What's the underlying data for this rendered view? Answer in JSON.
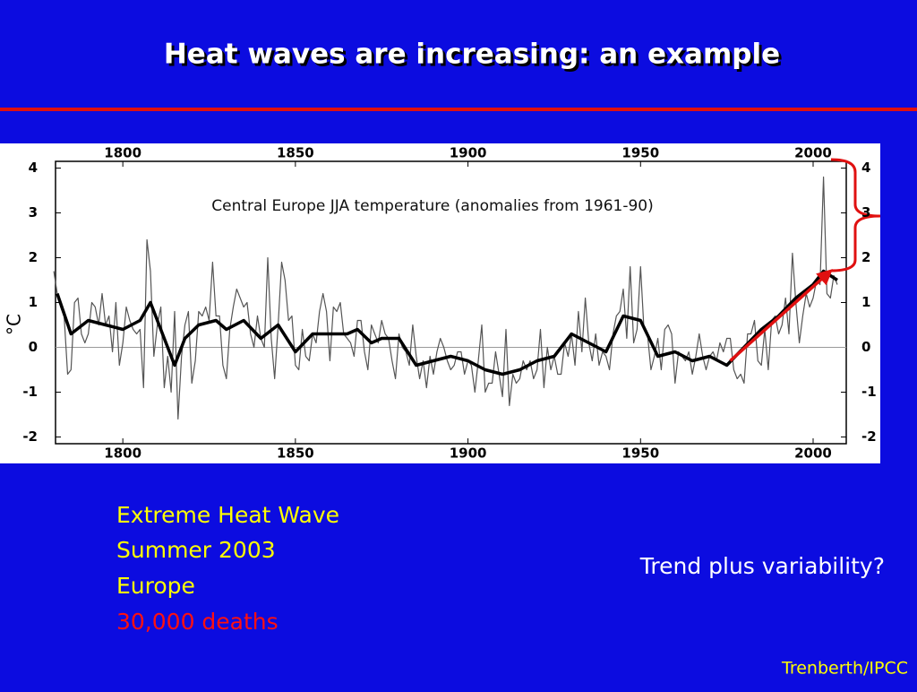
{
  "slide": {
    "title": "Heat waves are increasing: an example",
    "facts": [
      "Extreme Heat Wave",
      "Summer 2003",
      "Europe",
      "30,000 deaths"
    ],
    "question": "Trend plus variability?",
    "credit": "Trenberth/IPCC"
  },
  "chart_data": {
    "type": "line",
    "title": "Central Europe JJA temperature (anomalies from 1961-90)",
    "ylabel": "°C",
    "xlim": [
      1780.5,
      2009.6
    ],
    "ylim": [
      -2.15,
      4.15
    ],
    "xticks": [
      1800,
      1850,
      1900,
      1950,
      2000
    ],
    "yticks": [
      -2,
      -1,
      0,
      1,
      2,
      3,
      4
    ],
    "series": [
      {
        "color": "#555555",
        "x": [
          1780,
          1781,
          1782,
          1783,
          1784,
          1785,
          1786,
          1787,
          1788,
          1789,
          1790,
          1791,
          1792,
          1793,
          1794,
          1795,
          1796,
          1797,
          1798,
          1799,
          1800,
          1801,
          1802,
          1803,
          1804,
          1805,
          1806,
          1807,
          1808,
          1809,
          1810,
          1811,
          1812,
          1813,
          1814,
          1815,
          1816,
          1817,
          1818,
          1819,
          1820,
          1821,
          1822,
          1823,
          1824,
          1825,
          1826,
          1827,
          1828,
          1829,
          1830,
          1831,
          1832,
          1833,
          1834,
          1835,
          1836,
          1837,
          1838,
          1839,
          1840,
          1841,
          1842,
          1843,
          1844,
          1845,
          1846,
          1847,
          1848,
          1849,
          1850,
          1851,
          1852,
          1853,
          1854,
          1855,
          1856,
          1857,
          1858,
          1859,
          1860,
          1861,
          1862,
          1863,
          1864,
          1865,
          1866,
          1867,
          1868,
          1869,
          1870,
          1871,
          1872,
          1873,
          1874,
          1875,
          1876,
          1877,
          1878,
          1879,
          1880,
          1881,
          1882,
          1883,
          1884,
          1885,
          1886,
          1887,
          1888,
          1889,
          1890,
          1891,
          1892,
          1893,
          1894,
          1895,
          1896,
          1897,
          1898,
          1899,
          1900,
          1901,
          1902,
          1903,
          1904,
          1905,
          1906,
          1907,
          1908,
          1909,
          1910,
          1911,
          1912,
          1913,
          1914,
          1915,
          1916,
          1917,
          1918,
          1919,
          1920,
          1921,
          1922,
          1923,
          1924,
          1925,
          1926,
          1927,
          1928,
          1929,
          1930,
          1931,
          1932,
          1933,
          1934,
          1935,
          1936,
          1937,
          1938,
          1939,
          1940,
          1941,
          1942,
          1943,
          1944,
          1945,
          1946,
          1947,
          1948,
          1949,
          1950,
          1951,
          1952,
          1953,
          1954,
          1955,
          1956,
          1957,
          1958,
          1959,
          1960,
          1961,
          1962,
          1963,
          1964,
          1965,
          1966,
          1967,
          1968,
          1969,
          1970,
          1971,
          1972,
          1973,
          1974,
          1975,
          1976,
          1977,
          1978,
          1979,
          1980,
          1981,
          1982,
          1983,
          1984,
          1985,
          1986,
          1987,
          1988,
          1989,
          1990,
          1991,
          1992,
          1993,
          1994,
          1995,
          1996,
          1997,
          1998,
          1999,
          2000,
          2001,
          2002,
          2003,
          2004,
          2005,
          2006,
          2007
        ],
        "values": [
          1.7,
          1.2,
          0.9,
          0.7,
          -0.6,
          -0.5,
          1.0,
          1.1,
          0.3,
          0.1,
          0.3,
          1.0,
          0.9,
          0.5,
          1.2,
          0.5,
          0.7,
          -0.1,
          1.0,
          -0.4,
          0.1,
          0.9,
          0.6,
          0.4,
          0.3,
          0.4,
          -0.9,
          2.4,
          1.7,
          -0.2,
          0.5,
          0.9,
          -0.9,
          -0.2,
          -1.0,
          0.8,
          -1.6,
          -0.2,
          0.5,
          0.8,
          -0.8,
          -0.3,
          0.8,
          0.7,
          0.9,
          0.6,
          1.9,
          0.7,
          0.7,
          -0.4,
          -0.7,
          0.4,
          0.9,
          1.3,
          1.1,
          0.9,
          1.0,
          0.3,
          0.0,
          0.7,
          0.2,
          0.0,
          2.0,
          0.2,
          -0.7,
          0.5,
          1.9,
          1.5,
          0.6,
          0.7,
          -0.4,
          -0.5,
          0.4,
          -0.2,
          -0.3,
          0.3,
          0.1,
          0.8,
          1.2,
          0.8,
          -0.3,
          0.9,
          0.8,
          1.0,
          0.3,
          0.2,
          0.1,
          -0.2,
          0.6,
          0.6,
          -0.1,
          -0.5,
          0.5,
          0.3,
          0.1,
          0.6,
          0.3,
          0.2,
          -0.3,
          -0.7,
          0.3,
          0.0,
          -0.1,
          -0.4,
          0.5,
          -0.2,
          -0.7,
          -0.3,
          -0.9,
          -0.2,
          -0.6,
          -0.1,
          0.2,
          0.0,
          -0.3,
          -0.5,
          -0.4,
          -0.1,
          -0.1,
          -0.6,
          -0.3,
          -0.4,
          -1.0,
          -0.3,
          0.5,
          -1.0,
          -0.8,
          -0.8,
          -0.1,
          -0.6,
          -1.1,
          0.4,
          -1.3,
          -0.6,
          -0.8,
          -0.7,
          -0.3,
          -0.5,
          -0.3,
          -0.7,
          -0.5,
          0.4,
          -0.9,
          0.0,
          -0.5,
          -0.2,
          -0.6,
          -0.6,
          0.1,
          -0.2,
          0.3,
          -0.4,
          0.8,
          -0.1,
          1.1,
          0.1,
          -0.3,
          0.3,
          -0.4,
          -0.1,
          -0.2,
          -0.5,
          0.3,
          0.7,
          0.8,
          1.3,
          0.2,
          1.8,
          0.1,
          0.4,
          1.8,
          0.4,
          0.3,
          -0.5,
          -0.2,
          0.2,
          -0.5,
          0.4,
          0.5,
          0.3,
          -0.8,
          -0.1,
          -0.2,
          -0.3,
          -0.1,
          -0.6,
          -0.2,
          0.3,
          -0.2,
          -0.5,
          -0.2,
          -0.1,
          -0.3,
          0.1,
          -0.1,
          0.2,
          0.2,
          -0.5,
          -0.7,
          -0.6,
          -0.8,
          0.3,
          0.3,
          0.6,
          -0.3,
          -0.4,
          0.4,
          -0.5,
          0.6,
          0.7,
          0.3,
          0.5,
          1.1,
          0.3,
          2.1,
          1.0,
          0.1,
          0.7,
          1.2,
          0.9,
          1.1,
          1.5,
          1.4,
          3.8,
          1.2,
          1.1,
          1.6,
          1.4
        ]
      },
      {
        "color": "#000000",
        "x": [
          1781,
          1785,
          1790,
          1795,
          1800,
          1805,
          1808,
          1812,
          1815,
          1818,
          1822,
          1827,
          1830,
          1835,
          1840,
          1845,
          1850,
          1855,
          1860,
          1865,
          1868,
          1872,
          1875,
          1880,
          1885,
          1890,
          1895,
          1900,
          1905,
          1910,
          1915,
          1920,
          1925,
          1930,
          1935,
          1940,
          1945,
          1950,
          1955,
          1960,
          1965,
          1970,
          1975,
          1980,
          1985,
          1990,
          1995,
          2000,
          2003,
          2007
        ],
        "values": [
          1.2,
          0.3,
          0.6,
          0.5,
          0.4,
          0.6,
          1.0,
          0.2,
          -0.4,
          0.2,
          0.5,
          0.6,
          0.4,
          0.6,
          0.2,
          0.5,
          -0.1,
          0.3,
          0.3,
          0.3,
          0.4,
          0.1,
          0.2,
          0.2,
          -0.4,
          -0.3,
          -0.2,
          -0.3,
          -0.5,
          -0.6,
          -0.5,
          -0.3,
          -0.2,
          0.3,
          0.1,
          -0.1,
          0.7,
          0.6,
          -0.2,
          -0.1,
          -0.3,
          -0.2,
          -0.4,
          0.0,
          0.4,
          0.7,
          1.1,
          1.4,
          1.7,
          1.5
        ]
      }
    ],
    "trend": {
      "color": "#e01010",
      "x": [
        1976,
        2005
      ],
      "values": [
        -0.3,
        1.7
      ]
    }
  }
}
